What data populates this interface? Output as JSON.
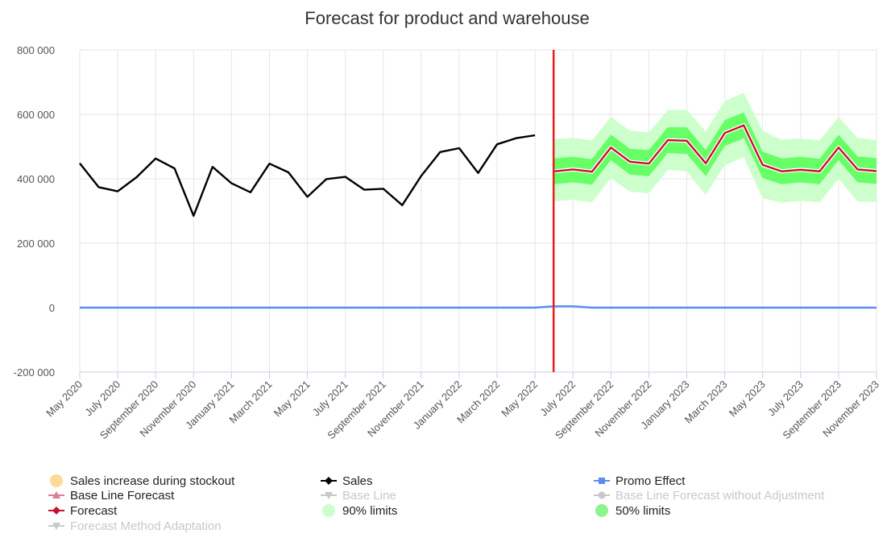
{
  "chart_data": {
    "type": "line",
    "title": "Forecast for product and warehouse",
    "xlabel": "",
    "ylabel": "",
    "ylim": [
      -200000,
      800000
    ],
    "y_ticks": [
      {
        "value": 800000,
        "label": "800 000"
      },
      {
        "value": 600000,
        "label": "600 000"
      },
      {
        "value": 400000,
        "label": "400 000"
      },
      {
        "value": 200000,
        "label": "200 000"
      },
      {
        "value": 0,
        "label": "0"
      },
      {
        "value": -200000,
        "label": "-200 000"
      }
    ],
    "months": [
      "May 2020",
      "June 2020",
      "July 2020",
      "August 2020",
      "September 2020",
      "October 2020",
      "November 2020",
      "December 2020",
      "January 2021",
      "February 2021",
      "March 2021",
      "April 2021",
      "May 2021",
      "June 2021",
      "July 2021",
      "August 2021",
      "September 2021",
      "October 2021",
      "November 2021",
      "December 2021",
      "January 2022",
      "February 2022",
      "March 2022",
      "April 2022",
      "May 2022",
      "June 2022",
      "July 2022",
      "August 2022",
      "September 2022",
      "October 2022",
      "November 2022",
      "December 2022",
      "January 2023",
      "February 2023",
      "March 2023",
      "April 2023",
      "May 2023",
      "June 2023",
      "July 2023",
      "August 2023",
      "September 2023",
      "October 2023",
      "November 2023"
    ],
    "x_tick_labels": [
      {
        "index": 0,
        "label": "May 2020"
      },
      {
        "index": 2,
        "label": "July 2020"
      },
      {
        "index": 4,
        "label": "September 2020"
      },
      {
        "index": 6,
        "label": "November 2020"
      },
      {
        "index": 8,
        "label": "January 2021"
      },
      {
        "index": 10,
        "label": "March 2021"
      },
      {
        "index": 12,
        "label": "May 2021"
      },
      {
        "index": 14,
        "label": "July 2021"
      },
      {
        "index": 16,
        "label": "September 2021"
      },
      {
        "index": 18,
        "label": "November 2021"
      },
      {
        "index": 20,
        "label": "January 2022"
      },
      {
        "index": 22,
        "label": "March 2022"
      },
      {
        "index": 24,
        "label": "May 2022"
      },
      {
        "index": 26,
        "label": "July 2022"
      },
      {
        "index": 28,
        "label": "September 2022"
      },
      {
        "index": 30,
        "label": "November 2022"
      },
      {
        "index": 32,
        "label": "January 2023"
      },
      {
        "index": 34,
        "label": "March 2023"
      },
      {
        "index": 36,
        "label": "May 2023"
      },
      {
        "index": 38,
        "label": "July 2023"
      },
      {
        "index": 40,
        "label": "September 2023"
      },
      {
        "index": 42,
        "label": "November 2023"
      }
    ],
    "forecast_start_index": 25,
    "series": [
      {
        "name": "Sales",
        "color": "#000000",
        "start_index": 0,
        "values": [
          448000,
          374000,
          361000,
          405000,
          463000,
          432000,
          285000,
          437000,
          386000,
          358000,
          447000,
          420000,
          344000,
          399000,
          406000,
          366000,
          369000,
          318000,
          409000,
          483000,
          495000,
          418000,
          507000,
          526000,
          535000
        ]
      },
      {
        "name": "Forecast",
        "color": "#c8102e",
        "start_index": 25,
        "values": [
          423000,
          429000,
          422000,
          497000,
          453000,
          447000,
          520000,
          518000,
          448000,
          542000,
          566000,
          443000,
          423000,
          428000,
          423000,
          497000,
          429000,
          424000
        ]
      },
      {
        "name": "Promo Effect",
        "color": "#5b8def",
        "start_index": 0,
        "values": [
          0,
          0,
          0,
          0,
          0,
          0,
          0,
          0,
          0,
          0,
          0,
          0,
          0,
          0,
          0,
          0,
          0,
          0,
          0,
          0,
          0,
          0,
          0,
          0,
          0,
          4000,
          4000,
          0,
          0,
          0,
          0,
          0,
          0,
          0,
          0,
          0,
          0,
          0,
          0,
          0,
          0,
          0,
          0
        ]
      }
    ],
    "bands": [
      {
        "name": "90% limits",
        "color": "#ccffcc",
        "start_index": 25,
        "upper": [
          523000,
          527000,
          519000,
          592000,
          549000,
          544000,
          613000,
          614000,
          547000,
          641000,
          667000,
          548000,
          521000,
          525000,
          519000,
          592000,
          527000,
          520000
        ],
        "lower": [
          330000,
          335000,
          327000,
          402000,
          360000,
          355000,
          428000,
          423000,
          350000,
          442000,
          467000,
          340000,
          326000,
          332000,
          327000,
          400000,
          330000,
          328000
        ]
      },
      {
        "name": "50% limits",
        "color": "#66ff66",
        "start_index": 25,
        "upper": [
          463000,
          468000,
          461000,
          537000,
          493000,
          489000,
          560000,
          560000,
          489000,
          582000,
          606000,
          484000,
          463000,
          468000,
          462000,
          537000,
          469000,
          464000
        ],
        "lower": [
          383000,
          389000,
          382000,
          458000,
          413000,
          408000,
          480000,
          477000,
          408000,
          502000,
          526000,
          402000,
          383000,
          389000,
          383000,
          458000,
          389000,
          384000
        ]
      }
    ],
    "legend": [
      {
        "label": "Sales increase during stockout",
        "marker": "circle",
        "color": "#ffd999",
        "enabled": true
      },
      {
        "label": "Sales",
        "marker": "diamond-line",
        "color": "#000000",
        "enabled": true
      },
      {
        "label": "Promo Effect",
        "marker": "square-line",
        "color": "#5b8def",
        "enabled": true
      },
      {
        "label": "Base Line Forecast",
        "marker": "triangle-line",
        "color": "#e07b8f",
        "enabled": true
      },
      {
        "label": "Base Line",
        "marker": "triangle-down-line",
        "color": "#c8c8c8",
        "enabled": false
      },
      {
        "label": "Base Line Forecast without Adjustment",
        "marker": "circle-line",
        "color": "#c8c8c8",
        "enabled": false
      },
      {
        "label": "Forecast",
        "marker": "diamond-line",
        "color": "#c8102e",
        "enabled": true
      },
      {
        "label": "90% limits",
        "marker": "circle",
        "color": "#ccffcc",
        "enabled": true
      },
      {
        "label": "50% limits",
        "marker": "circle",
        "color": "#8cf58c",
        "enabled": true
      },
      {
        "label": "Forecast Method Adaptation",
        "marker": "triangle-down-line",
        "color": "#c8c8c8",
        "enabled": false
      }
    ]
  }
}
